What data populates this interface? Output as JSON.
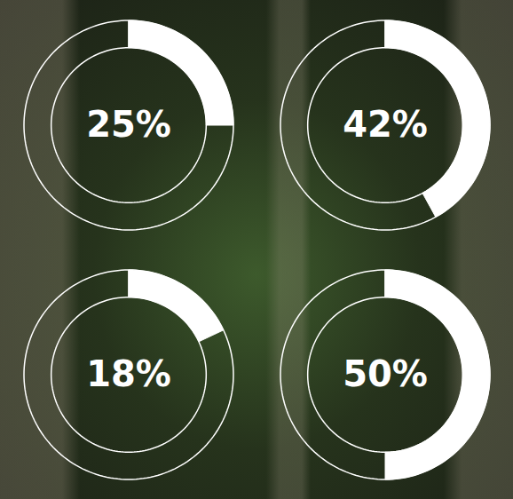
{
  "chart_data": [
    {
      "type": "donut",
      "values": [
        25
      ],
      "value_labels": [
        "25%"
      ],
      "data_labels": true,
      "color": "#ffffff"
    },
    {
      "type": "donut",
      "values": [
        42
      ],
      "value_labels": [
        "42%"
      ],
      "data_labels": true,
      "color": "#ffffff"
    },
    {
      "type": "donut",
      "values": [
        18
      ],
      "value_labels": [
        "18%"
      ],
      "data_labels": true,
      "color": "#ffffff"
    },
    {
      "type": "donut",
      "values": [
        50
      ],
      "value_labels": [
        "50%"
      ],
      "data_labels": true,
      "color": "#ffffff"
    }
  ]
}
